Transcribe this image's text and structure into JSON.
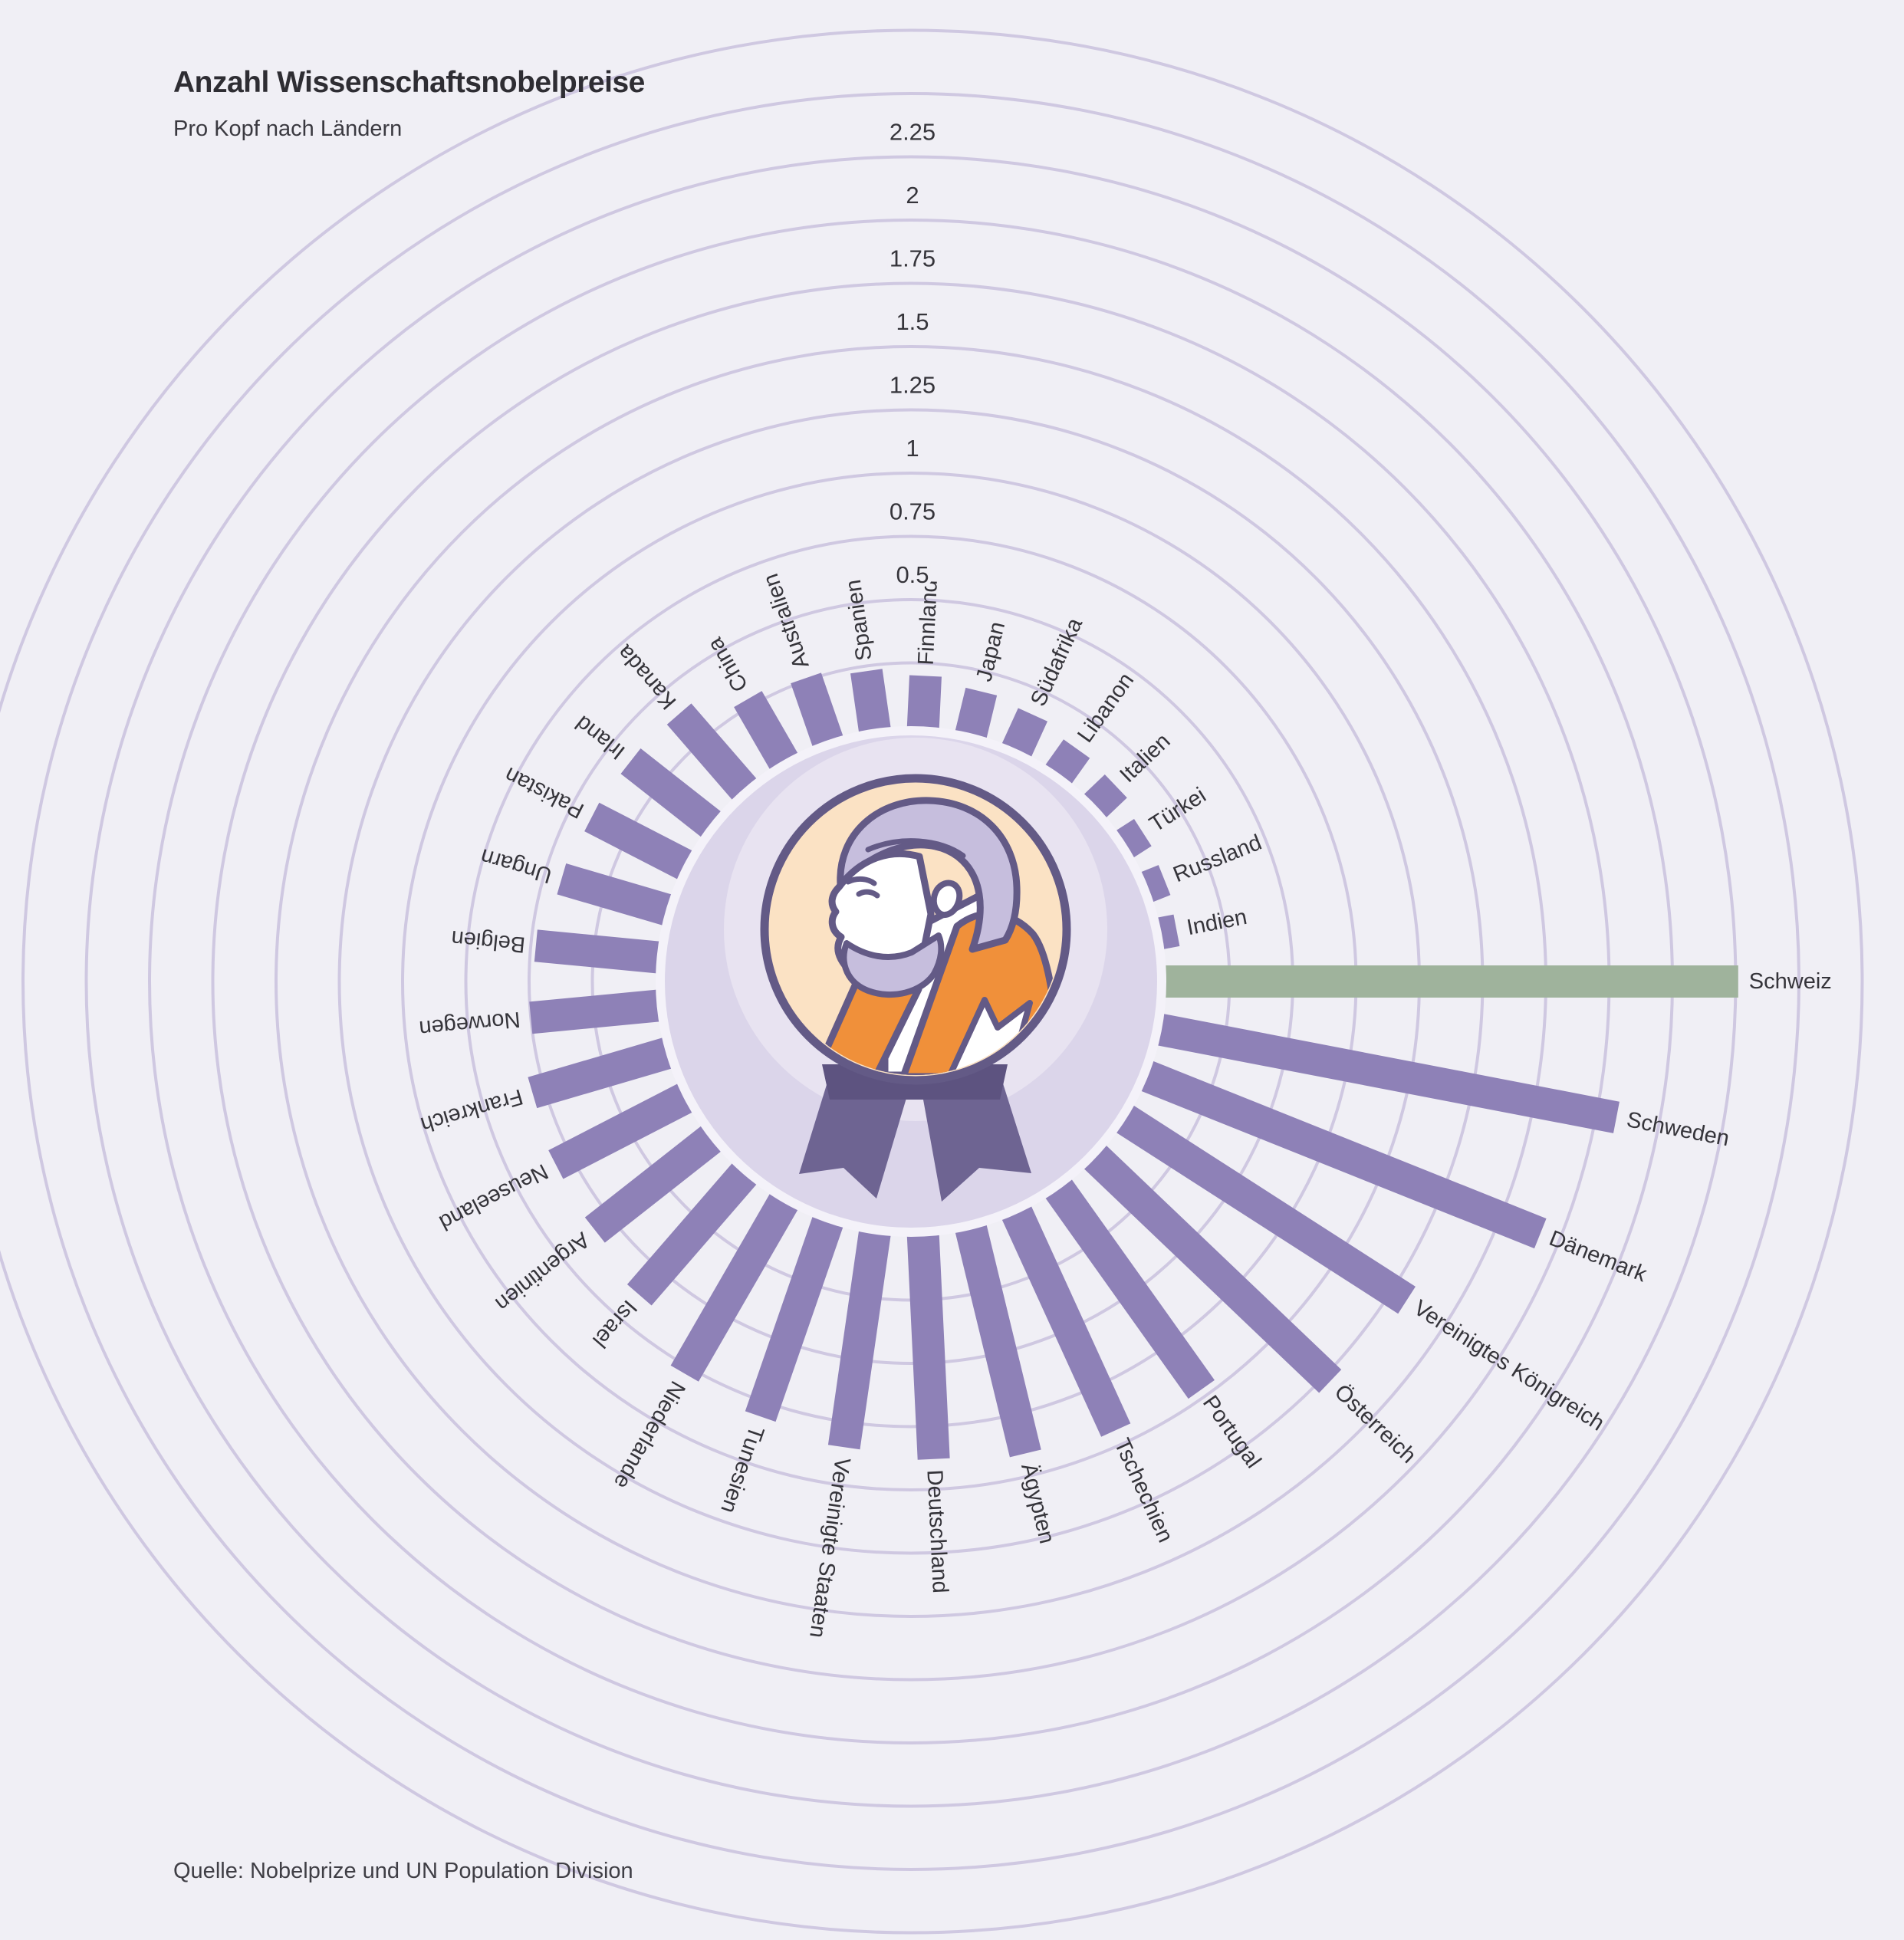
{
  "title": "Anzahl Wissenschaftsnobelpreise",
  "subtitle": "Pro Kopf nach Ländern",
  "source": "Quelle: Nobelprize und UN Population Division",
  "icons": {
    "center_icon": "nobel-medal-illustration"
  },
  "colors": {
    "background": "#f0eff5",
    "ring": "#cfc8e1",
    "bar": "#8e81b7",
    "highlight": "#9fb39c",
    "plate": "#dbd5ea",
    "plate_rim": "#f4f2f9",
    "halo": "#e8e3f1",
    "medal_cream": "#fbe2c4",
    "medal_outline": "#635a86",
    "medal_orange": "#f0903a",
    "medal_hair": "#c6bedd",
    "ribbon": "#6e6492",
    "ribbon_shadow": "#5d5380",
    "label_text": "#35343a",
    "title_text": "#2e2d33"
  },
  "chart_data": {
    "type": "bar",
    "variant": "radial",
    "title": "Anzahl Wissenschaftsnobelpreise",
    "subtitle": "Pro Kopf nach Ländern",
    "legend": "none",
    "grid": "concentric-rings",
    "ring_step": 0.25,
    "rings_max": 2.75,
    "start_angle_deg": 0,
    "direction": "clockwise",
    "axis_ticks": [
      "0.5",
      "0.75",
      "1",
      "1.25",
      "1.5",
      "1.75",
      "2",
      "2.25"
    ],
    "axis_tick_values": [
      0.5,
      0.75,
      1,
      1.25,
      1.5,
      1.75,
      2,
      2.25
    ],
    "highlight_category": "Schweiz",
    "categories": [
      "Schweiz",
      "Schweden",
      "Dänemark",
      "Vereinigtes Königreich",
      "Österreich",
      "Portugal",
      "Tschechien",
      "Ägypten",
      "Deutschland",
      "Vereinigte Staaten",
      "Tunesien",
      "Niederlande",
      "Israel",
      "Argentinien",
      "Neuseeland",
      "Frankreich",
      "Norwegen",
      "Belgien",
      "Ungarn",
      "Pakistan",
      "Irland",
      "Kanada",
      "China",
      "Australien",
      "Spanien",
      "Finnland",
      "Japan",
      "Südafrika",
      "Libanon",
      "Italien",
      "Türkei",
      "Russland",
      "Indien"
    ],
    "values": [
      2.26,
      1.83,
      1.67,
      1.32,
      1.28,
      0.97,
      0.94,
      0.91,
      0.88,
      0.85,
      0.81,
      0.78,
      0.63,
      0.58,
      0.57,
      0.55,
      0.5,
      0.48,
      0.43,
      0.41,
      0.4,
      0.39,
      0.28,
      0.26,
      0.23,
      0.2,
      0.17,
      0.15,
      0.12,
      0.11,
      0.08,
      0.07,
      0.06
    ]
  }
}
